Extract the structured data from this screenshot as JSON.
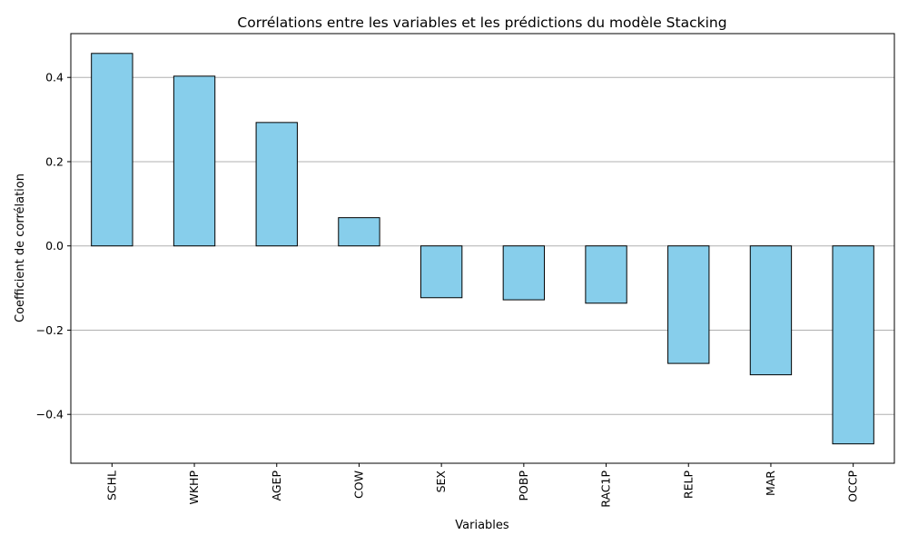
{
  "chart_data": {
    "type": "bar",
    "title": "Corrélations entre les variables et les prédictions du modèle Stacking",
    "xlabel": "Variables",
    "ylabel": "Coefficient de corrélation",
    "categories": [
      "SCHL",
      "WKHP",
      "AGEP",
      "COW",
      "SEX",
      "POBP",
      "RAC1P",
      "RELP",
      "MAR",
      "OCCP"
    ],
    "values": [
      0.457,
      0.403,
      0.293,
      0.067,
      -0.123,
      -0.128,
      -0.136,
      -0.279,
      -0.306,
      -0.47
    ],
    "ylim": [
      -0.516,
      0.504
    ],
    "yticks": [
      -0.4,
      -0.2,
      0.0,
      0.2,
      0.4
    ],
    "ytick_labels": [
      "−0.4",
      "−0.2",
      "0.0",
      "0.2",
      "0.4"
    ],
    "grid": "y-axis",
    "legend": "none",
    "colors": {
      "bar_fill": "#87ceeb",
      "bar_edge": "#000000",
      "grid": "#b0b0b0"
    }
  }
}
